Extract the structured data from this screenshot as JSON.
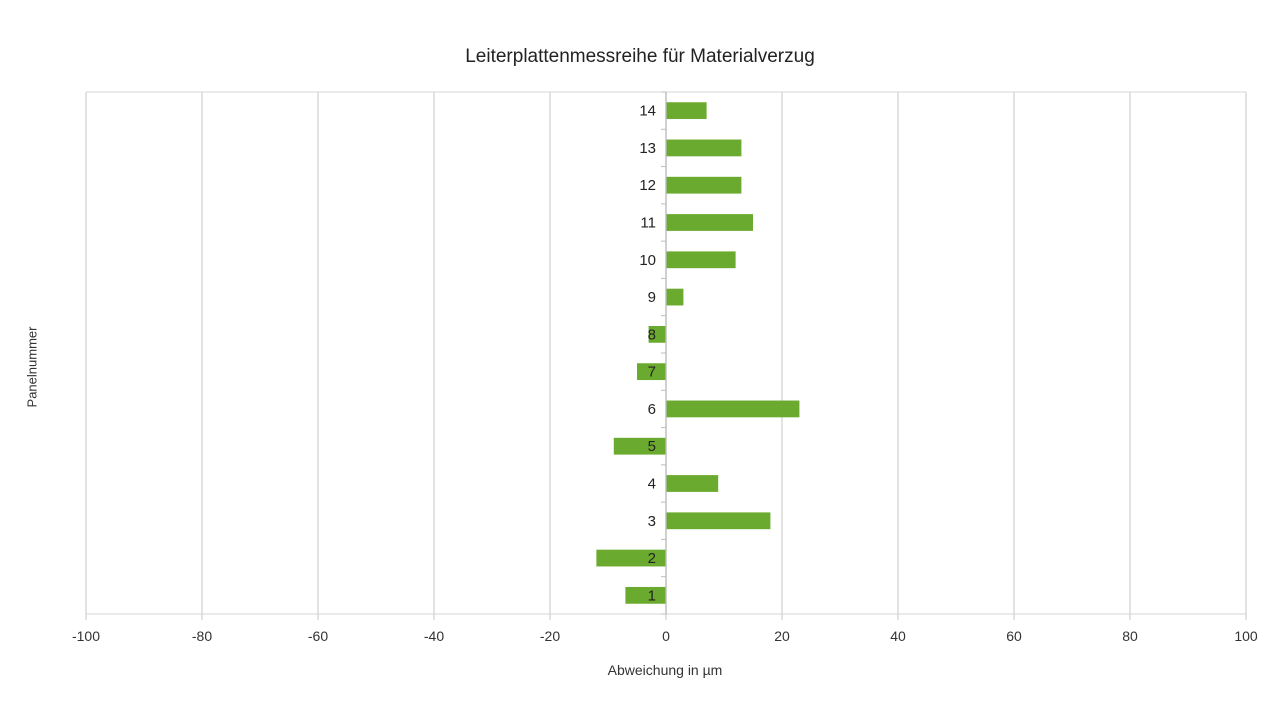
{
  "chart_data": {
    "type": "bar",
    "orientation": "horizontal",
    "title": "Leiterplattenmessreihe für Materialverzug",
    "xlabel": "Abweichung in µm",
    "ylabel": "Panelnummer",
    "xlim": [
      -100,
      100
    ],
    "x_ticks": [
      "-100",
      "-80",
      "-60",
      "-40",
      "-20",
      "0",
      "20",
      "40",
      "60",
      "80",
      "100"
    ],
    "categories": [
      "1",
      "2",
      "3",
      "4",
      "5",
      "6",
      "7",
      "8",
      "9",
      "10",
      "11",
      "12",
      "13",
      "14"
    ],
    "values": [
      -7,
      -12,
      18,
      9,
      -9,
      23,
      -5,
      -3,
      3,
      12,
      15,
      13,
      13,
      7
    ],
    "grid": true,
    "legend": "none",
    "bar_color": "#6aaa2e",
    "grid_color": "#d4d4d4"
  }
}
